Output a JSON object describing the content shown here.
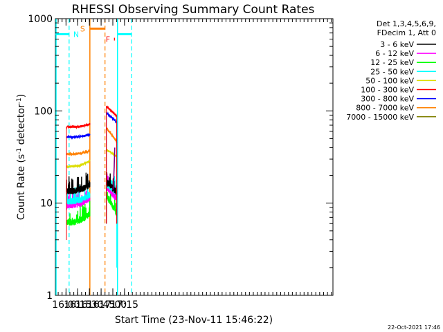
{
  "chart_data": {
    "type": "line",
    "title": "RHESSI Observing Summary Count Rates",
    "xlabel": "Start Time (23-Nov-11 15:46:22)",
    "ylabel_main": "Count Rate (s",
    "ylabel_sup1": "-1",
    "ylabel_mid": " detector",
    "ylabel_sup2": "-1",
    "ylabel_end": ")",
    "yscale": "log",
    "ylim": [
      1,
      1000
    ],
    "xlim_minutes": [
      946.4,
      1302
    ],
    "x_ticks": [
      {
        "label": "16:00",
        "minutes": 960
      },
      {
        "label": "16:15",
        "minutes": 975
      },
      {
        "label": "16:30",
        "minutes": 990
      },
      {
        "label": "16:45",
        "minutes": 1005
      },
      {
        "label": "17:00",
        "minutes": 1020
      },
      {
        "label": "17:15",
        "minutes": 1035
      }
    ],
    "y_ticks": [
      {
        "label": "1",
        "value": 1
      },
      {
        "label": "10",
        "value": 10
      },
      {
        "label": "100",
        "value": 100
      },
      {
        "label": "1000",
        "value": 1000
      }
    ],
    "legend_header": [
      "Det 1,3,4,5,6,9,",
      "FDecim 1, Att 0"
    ],
    "legend_position": "right",
    "series": [
      {
        "name": "3 - 6 keV",
        "color": "#000000",
        "seg1_start": 13.5,
        "seg1_end": 16,
        "seg2_start": 17,
        "seg2_end": 13
      },
      {
        "name": "6 - 12 keV",
        "color": "#ff00ff",
        "seg1_start": 9.5,
        "seg1_end": 11.5,
        "seg2_start": 15,
        "seg2_end": 11
      },
      {
        "name": "12 - 25 keV",
        "color": "#00ff00",
        "seg1_start": 6.2,
        "seg1_end": 7.8,
        "seg2_start": 12,
        "seg2_end": 7.5
      },
      {
        "name": "25 - 50 keV",
        "color": "#00ffff",
        "seg1_start": 10.5,
        "seg1_end": 12.5,
        "seg2_start": 16,
        "seg2_end": 13
      },
      {
        "name": "50 - 100 keV",
        "color": "#dddd00",
        "seg1_start": 25,
        "seg1_end": 29,
        "seg2_start": 38,
        "seg2_end": 32
      },
      {
        "name": "100 - 300 keV",
        "color": "#ff0000",
        "seg1_start": 67,
        "seg1_end": 72,
        "seg2_start": 112,
        "seg2_end": 88
      },
      {
        "name": "300 - 800 keV",
        "color": "#0000ff",
        "seg1_start": 52,
        "seg1_end": 56,
        "seg2_start": 95,
        "seg2_end": 75
      },
      {
        "name": "800 - 7000 keV",
        "color": "#ff8000",
        "seg1_start": 34,
        "seg1_end": 37,
        "seg2_start": 65,
        "seg2_end": 46
      },
      {
        "name": "7000 - 15000 keV",
        "color": "#808000",
        "seg1_start": null,
        "seg1_end": null,
        "seg2_start": null,
        "seg2_end": null
      }
    ],
    "segments_minutes": [
      [
        960.6,
        990.6
      ],
      [
        1011.7,
        1025.0
      ]
    ],
    "annotations": [
      {
        "label": "N",
        "color": "#00ffff",
        "from_minutes": 946.4,
        "to_minutes": 964.0,
        "level": 680,
        "kind": "night"
      },
      {
        "label": "",
        "color": "#00ffff",
        "from_minutes": 1026.0,
        "to_minutes": 1044.0,
        "level": 680,
        "kind": "night"
      },
      {
        "label": "S",
        "color": "#ff8000",
        "from_minutes": 990.6,
        "to_minutes": 1010.0,
        "level": 780,
        "kind": "saa"
      },
      {
        "label": "F",
        "color": "#ff0000",
        "from_minutes": 1021.5,
        "to_minutes": 1022.6,
        "level": 600,
        "kind": "flare"
      }
    ],
    "flare_spike": {
      "color": "#800080",
      "peak_minutes": 1022.0,
      "peak_value": 40
    }
  },
  "footer": {
    "timestamp": "22-Oct-2021 17:46"
  }
}
